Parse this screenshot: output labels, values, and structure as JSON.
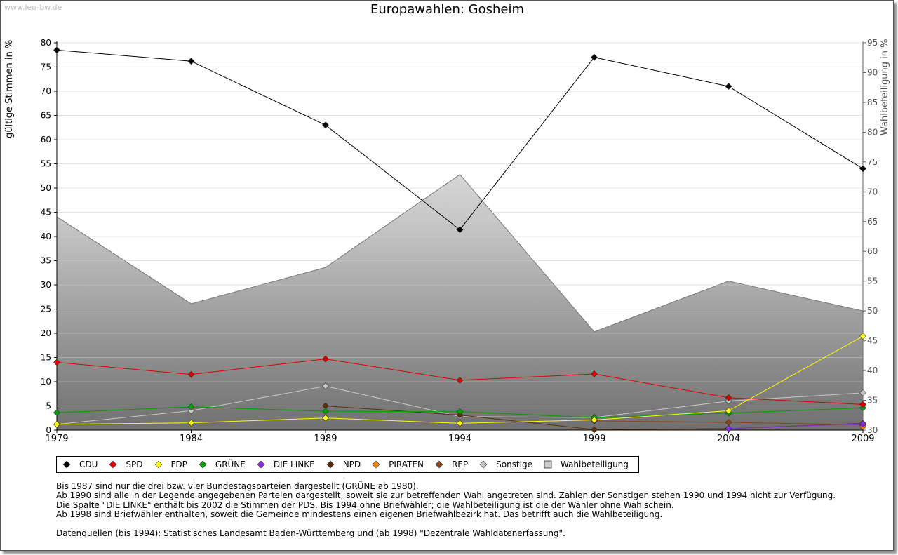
{
  "watermark": "www.leo-bw.de",
  "chart_data": {
    "type": "line",
    "title": "Europawahlen: Gosheim",
    "ylabel": "gültige Stimmen in %",
    "y2label": "Wahlbeteiligung in %",
    "xlabel": "",
    "categories": [
      "1979",
      "1984",
      "1989",
      "1994",
      "1999",
      "2004",
      "2009"
    ],
    "ylim": [
      0,
      80
    ],
    "yticks": [
      0,
      5,
      10,
      15,
      20,
      25,
      30,
      35,
      40,
      45,
      50,
      55,
      60,
      65,
      70,
      75,
      80
    ],
    "y2lim": [
      30,
      95
    ],
    "y2ticks": [
      30,
      35,
      40,
      45,
      50,
      55,
      60,
      65,
      70,
      75,
      80,
      85,
      90,
      95
    ],
    "area": {
      "name": "Wahlbeteiligung",
      "values": [
        65.8,
        51.2,
        57.3,
        72.9,
        46.5,
        55.0,
        50.0
      ]
    },
    "series": [
      {
        "name": "Sonstige",
        "color": "#c8c8c8",
        "values": [
          1.2,
          4.0,
          9.1,
          2.8,
          2.6,
          6.0,
          7.7
        ]
      },
      {
        "name": "REP",
        "color": "#8b4513",
        "values": [
          null,
          null,
          null,
          null,
          1.9,
          1.6,
          1.1
        ]
      },
      {
        "name": "PIRATEN",
        "color": "#ff8000",
        "values": [
          null,
          null,
          null,
          null,
          null,
          null,
          0.7
        ]
      },
      {
        "name": "NPD",
        "color": "#5a2d0c",
        "values": [
          null,
          null,
          5.0,
          3.1,
          0.1,
          0.3,
          1.4
        ]
      },
      {
        "name": "DIE LINKE",
        "color": "#8a2be2",
        "values": [
          null,
          null,
          null,
          null,
          null,
          0.3,
          1.3
        ]
      },
      {
        "name": "GRÜNE",
        "color": "#00a000",
        "values": [
          3.6,
          4.8,
          3.9,
          3.8,
          2.6,
          3.5,
          4.6
        ]
      },
      {
        "name": "FDP",
        "color": "#ffff00",
        "values": [
          1.2,
          1.5,
          2.5,
          1.4,
          2.1,
          4.0,
          19.4
        ]
      },
      {
        "name": "SPD",
        "color": "#e00000",
        "values": [
          14.0,
          11.5,
          14.7,
          10.3,
          11.6,
          6.7,
          5.3
        ]
      },
      {
        "name": "CDU",
        "color": "#000000",
        "values": [
          78.5,
          76.2,
          63.0,
          41.4,
          77.0,
          71.0,
          54.0
        ]
      }
    ],
    "legend": [
      {
        "name": "CDU",
        "color": "#000000",
        "shape": "diamond"
      },
      {
        "name": "SPD",
        "color": "#e00000",
        "shape": "diamond"
      },
      {
        "name": "FDP",
        "color": "#ffff00",
        "shape": "diamond"
      },
      {
        "name": "GRÜNE",
        "color": "#00a000",
        "shape": "diamond"
      },
      {
        "name": "DIE LINKE",
        "color": "#8a2be2",
        "shape": "diamond"
      },
      {
        "name": "NPD",
        "color": "#5a2d0c",
        "shape": "diamond"
      },
      {
        "name": "PIRATEN",
        "color": "#ff8000",
        "shape": "diamond"
      },
      {
        "name": "REP",
        "color": "#8b4513",
        "shape": "diamond"
      },
      {
        "name": "Sonstige",
        "color": "#c8c8c8",
        "shape": "diamond"
      },
      {
        "name": "Wahlbeteiligung",
        "color": "#b0b0b0",
        "shape": "square"
      }
    ],
    "legend_position": "bottom",
    "grid": true
  },
  "notes": [
    "Bis 1987 sind nur die drei bzw. vier Bundestagsparteien dargestellt (GRÜNE ab 1980).",
    "Ab 1990 sind alle in der Legende angegebenen Parteien dargestellt, soweit sie zur betreffenden Wahl angetreten sind. Zahlen der Sonstigen stehen 1990 und 1994 nicht zur Verfügung.",
    "Die Spalte \"DIE LINKE\" enthält bis 2002 die Stimmen der PDS. Bis 1994 ohne Briefwähler; die Wahlbeteiligung ist die der Wähler ohne Wahlschein.",
    "Ab 1998 sind Briefwähler enthalten, soweit die Gemeinde mindestens einen eigenen Briefwahlbezirk hat. Das betrifft auch die Wahlbeteiligung.",
    "",
    "Datenquellen (bis 1994): Statistisches Landesamt Baden-Württemberg und (ab 1998) \"Dezentrale Wahldatenerfassung\"."
  ]
}
